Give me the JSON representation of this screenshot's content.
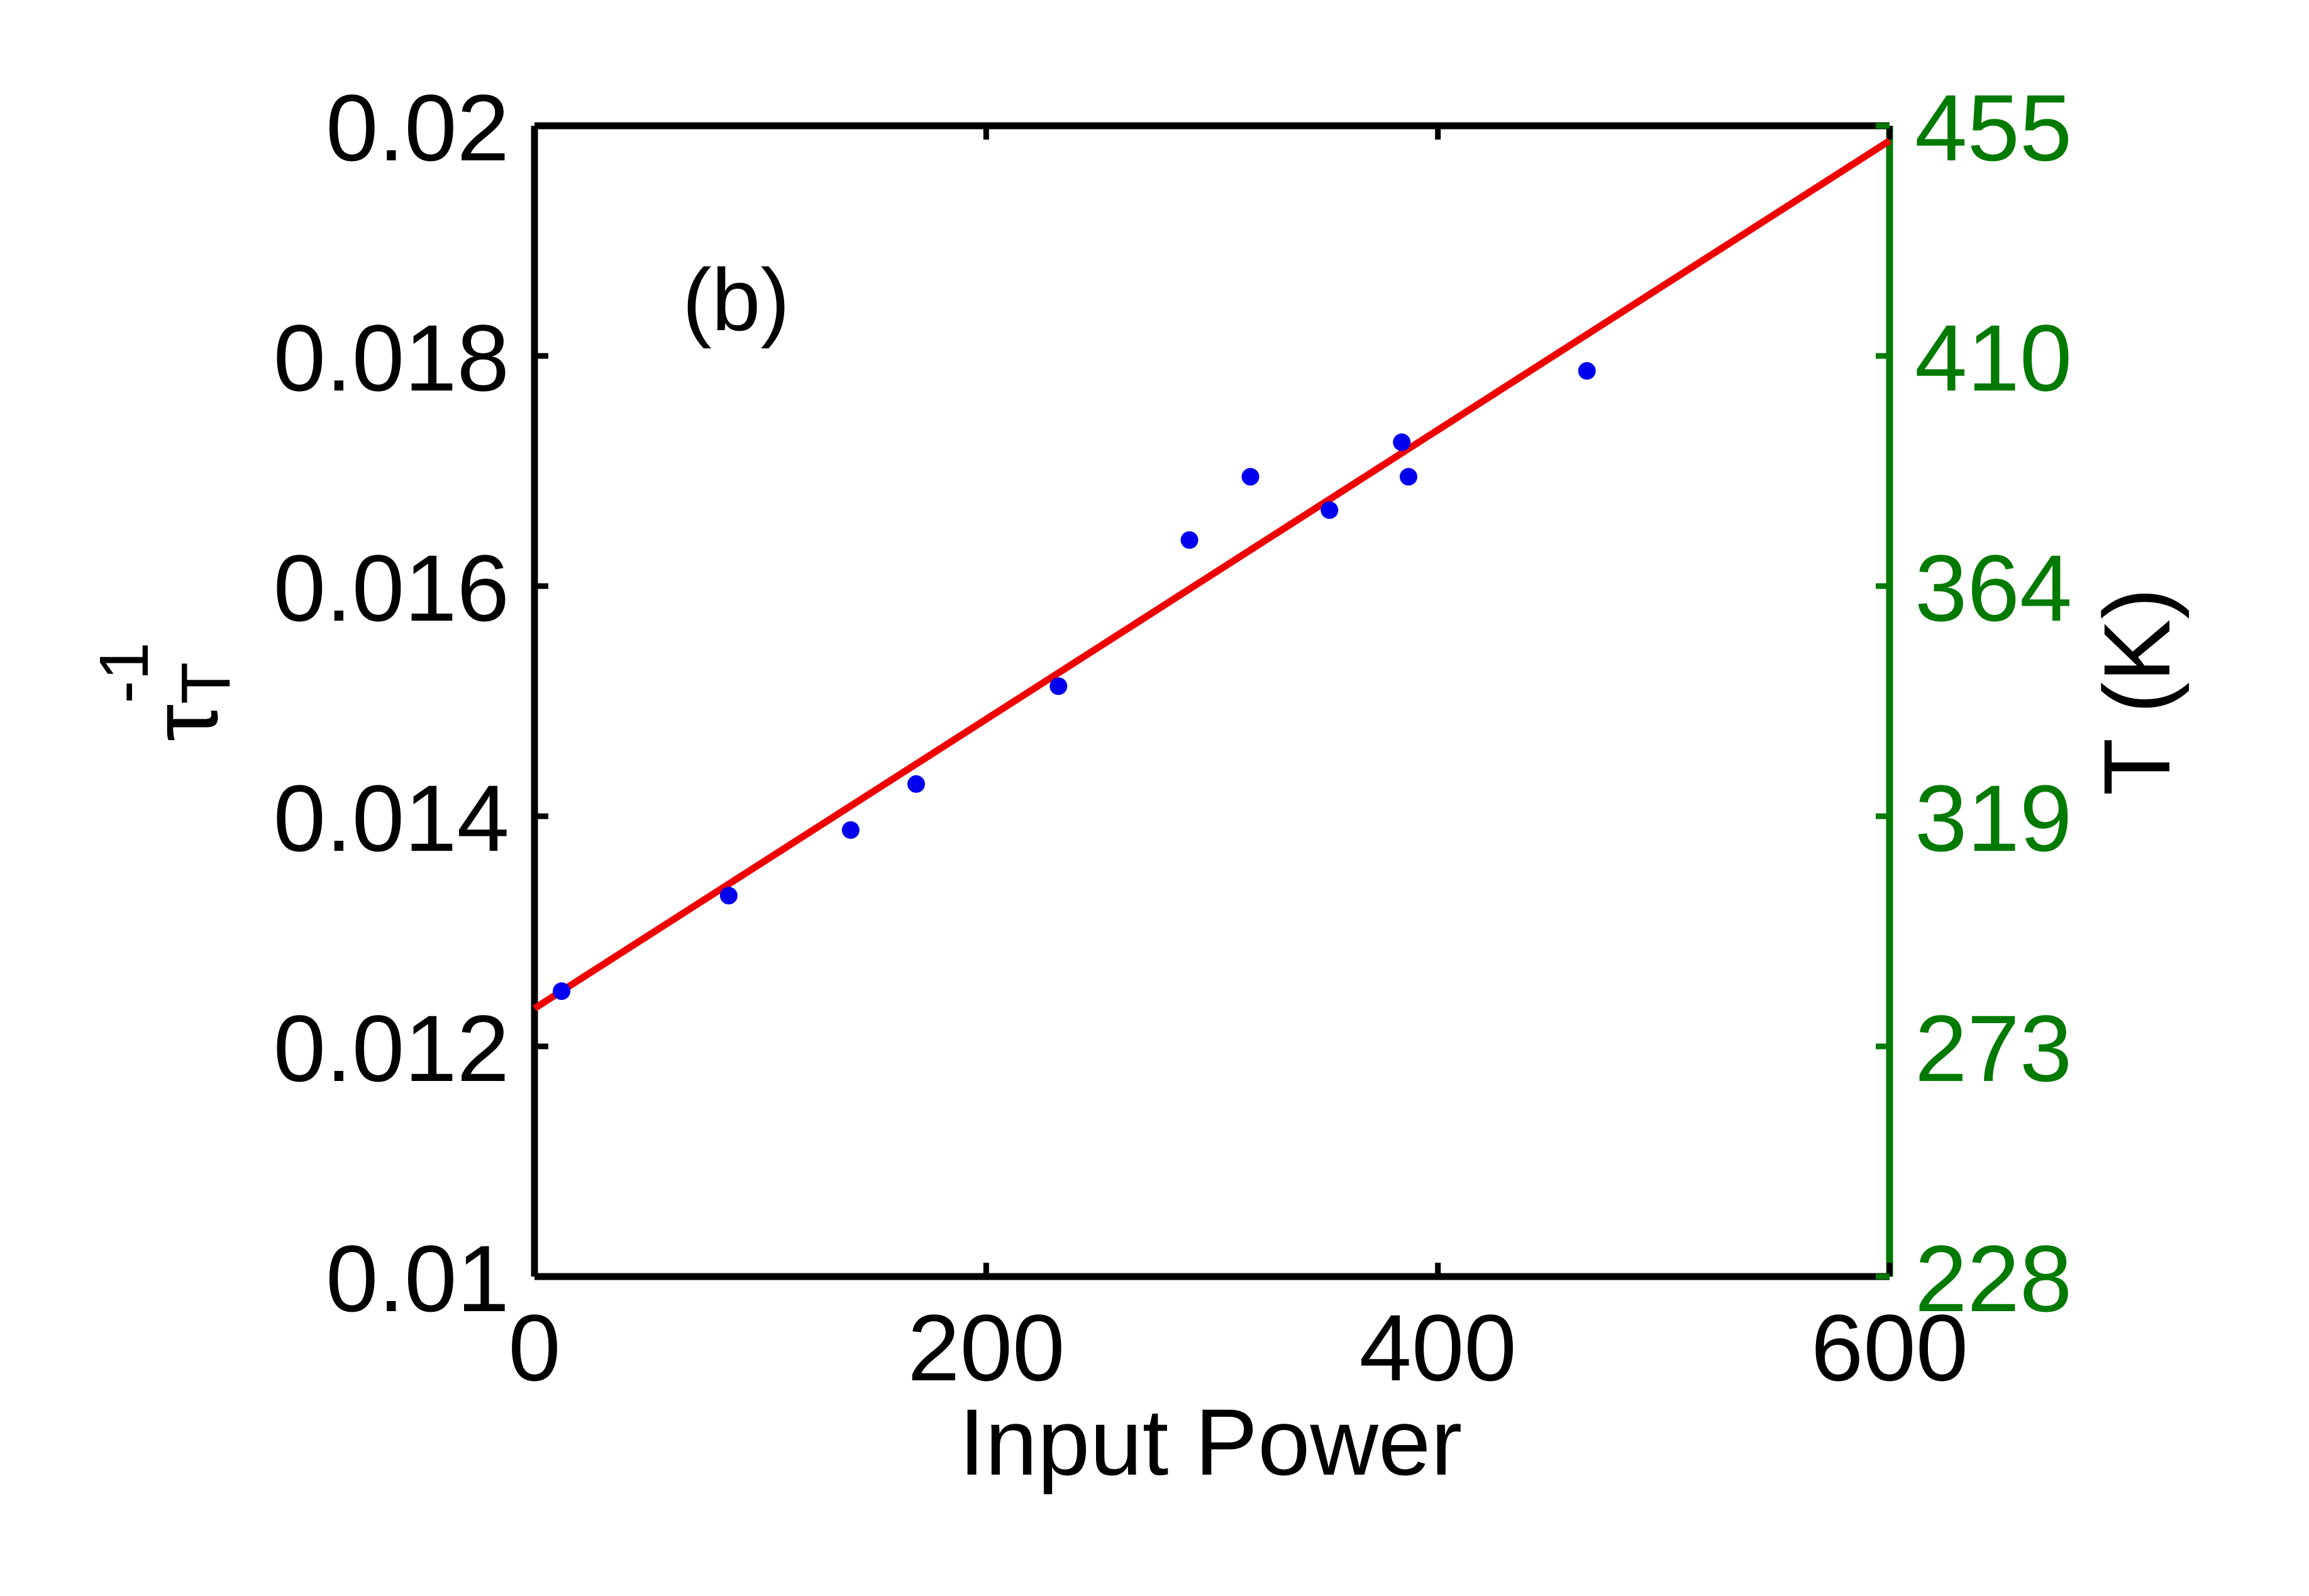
{
  "chart_data": {
    "type": "scatter",
    "panel_label": "(b)",
    "xlabel": "Input Power",
    "ylabel_main": "τ",
    "ylabel_sub": "T",
    "ylabel_sup": "-1",
    "ylabel_right": "T (K)",
    "xlim": [
      0,
      600
    ],
    "ylim": [
      0.01,
      0.02
    ],
    "x_ticks": [
      0,
      200,
      400,
      600
    ],
    "x_tick_labels": [
      "0",
      "200",
      "400",
      "600"
    ],
    "y_ticks": [
      0.01,
      0.012,
      0.014,
      0.016,
      0.018,
      0.02
    ],
    "y_tick_labels": [
      "0.01",
      "0.012",
      "0.014",
      "0.016",
      "0.018",
      "0.02"
    ],
    "y2_tick_labels": [
      "228",
      "273",
      "319",
      "364",
      "410",
      "455"
    ],
    "grid": false,
    "series": [
      {
        "kind": "points",
        "color": "#0000ee",
        "x": [
          12,
          86,
          140,
          169,
          232,
          290,
          317,
          352,
          384,
          387,
          466
        ],
        "y": [
          0.01248,
          0.01331,
          0.01388,
          0.01428,
          0.01513,
          0.0164,
          0.01695,
          0.01666,
          0.01725,
          0.01695,
          0.01787
        ]
      },
      {
        "kind": "fit-line",
        "color": "#ee0000",
        "x": [
          0,
          600
        ],
        "y": [
          0.01233,
          0.01987
        ]
      }
    ],
    "colors": {
      "left_axis": "#000000",
      "right_axis": "#007a00"
    }
  }
}
